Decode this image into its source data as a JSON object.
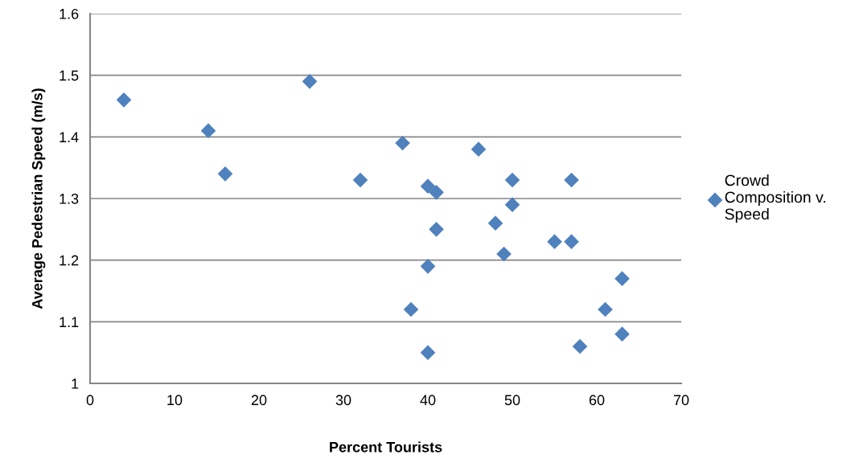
{
  "chart_data": {
    "type": "scatter",
    "xlabel": "Percent Tourists",
    "ylabel": "Average Pedestrian Speed (m/s)",
    "x": [
      4,
      14,
      16,
      26,
      32,
      37,
      40,
      41,
      41,
      40,
      38,
      40,
      46,
      50,
      50,
      48,
      49,
      57,
      55,
      57,
      63,
      61,
      63,
      58
    ],
    "series": [
      {
        "name": "Crowd\nComposition v.\nSpeed",
        "color": "#4f81bd",
        "values": [
          1.46,
          1.41,
          1.34,
          1.49,
          1.33,
          1.39,
          1.32,
          1.31,
          1.25,
          1.19,
          1.12,
          1.05,
          1.38,
          1.33,
          1.29,
          1.26,
          1.21,
          1.33,
          1.23,
          1.23,
          1.17,
          1.12,
          1.08,
          1.06
        ]
      }
    ],
    "xlim": [
      0,
      70
    ],
    "xticks": [
      0,
      10,
      20,
      30,
      40,
      50,
      60,
      70
    ],
    "ylim": [
      1,
      1.6
    ],
    "yticks": [
      1,
      {
        "value": 1.1,
        "label": "1.1"
      },
      {
        "value": 1.2,
        "label": "1.2"
      },
      {
        "value": 1.3,
        "label": "1.3"
      },
      {
        "value": 1.4,
        "label": "1.4"
      },
      {
        "value": 1.5,
        "label": "1.5"
      },
      {
        "value": 1.6,
        "label": "1.6"
      }
    ],
    "grid": "y",
    "legend": "right",
    "marker": "diamond"
  }
}
